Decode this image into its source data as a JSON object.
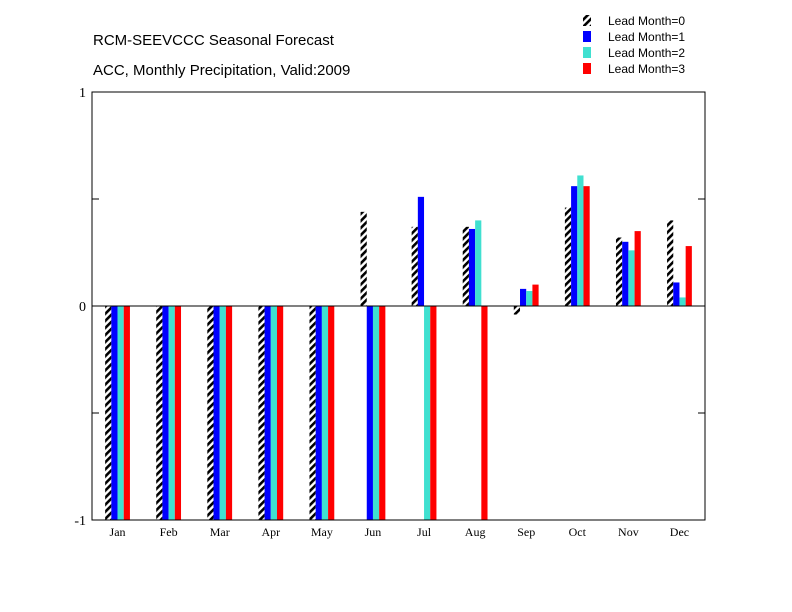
{
  "chart_data": {
    "type": "bar",
    "title": "RCM-SEEVCCC Seasonal Forecast",
    "subtitle": "ACC, Monthly Precipitation, Valid:2009",
    "xlabel": "",
    "ylabel": "",
    "ylim": [
      -1,
      1
    ],
    "yticks": [
      "1",
      "0",
      "-1"
    ],
    "grid": false,
    "legend_position": "top-right",
    "categories": [
      "Jan",
      "Feb",
      "Mar",
      "Apr",
      "May",
      "Jun",
      "Jul",
      "Aug",
      "Sep",
      "Oct",
      "Nov",
      "Dec"
    ],
    "series": [
      {
        "name": "Lead Month=0",
        "color": "#000000",
        "pattern": "hatched",
        "values": [
          -1,
          -1,
          -1,
          -1,
          -1,
          0.44,
          0.37,
          0.37,
          -0.04,
          0.46,
          0.32,
          0.4
        ]
      },
      {
        "name": "Lead Month=1",
        "color": "#0000ff",
        "pattern": "solid",
        "values": [
          -1,
          -1,
          -1,
          -1,
          -1,
          -1,
          0.51,
          0.36,
          0.08,
          0.56,
          0.3,
          0.11
        ]
      },
      {
        "name": "Lead Month=2",
        "color": "#40e0d0",
        "pattern": "solid",
        "values": [
          -1,
          -1,
          -1,
          -1,
          -1,
          -1,
          -1,
          0.4,
          0.07,
          0.61,
          0.26,
          0.04
        ]
      },
      {
        "name": "Lead Month=3",
        "color": "#ff0000",
        "pattern": "solid",
        "values": [
          -1,
          -1,
          -1,
          -1,
          -1,
          -1,
          -1,
          -1,
          0.1,
          0.56,
          0.35,
          0.28
        ]
      }
    ]
  }
}
